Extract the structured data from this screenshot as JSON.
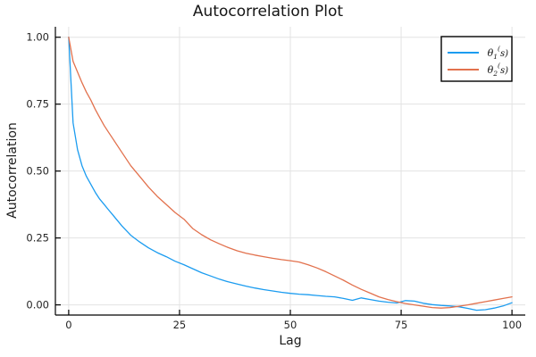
{
  "chart_data": {
    "type": "line",
    "title": "Autocorrelation Plot",
    "xlabel": "Lag",
    "ylabel": "Autocorrelation",
    "xlim": [
      -3.0,
      103.0
    ],
    "ylim": [
      -0.038,
      1.039
    ],
    "grid": true,
    "xticks": {
      "values": [
        0,
        25,
        50,
        75,
        100
      ],
      "labels": [
        "0",
        "25",
        "50",
        "75",
        "100"
      ]
    },
    "yticks": {
      "values": [
        0.0,
        0.25,
        0.5,
        0.75,
        1.0
      ],
      "labels": [
        "0.00",
        "0.25",
        "0.50",
        "0.75",
        "1.00"
      ]
    },
    "legend": {
      "position": "top-right",
      "background": "#ffffff",
      "border_color": "#000000"
    },
    "colors": {
      "grid": "#e3e3e3",
      "axis": "#000000",
      "tick_label": "#242424",
      "legend_text": "#111111"
    },
    "x": [
      0,
      1,
      2,
      3,
      4,
      5,
      6,
      7,
      8,
      9,
      10,
      12,
      14,
      16,
      18,
      20,
      22,
      24,
      26,
      28,
      30,
      32,
      34,
      36,
      38,
      40,
      42,
      44,
      46,
      48,
      50,
      52,
      54,
      56,
      58,
      60,
      62,
      64,
      66,
      68,
      70,
      72,
      74,
      76,
      78,
      80,
      82,
      84,
      86,
      88,
      90,
      92,
      94,
      96,
      98,
      100
    ],
    "series": [
      {
        "name": "theta_1^(s)",
        "label_parts": {
          "base": "θ",
          "sub": "1",
          "sup": "(",
          "tail": "s)"
        },
        "color": "#1b9cf0",
        "values": [
          1.0,
          0.68,
          0.58,
          0.52,
          0.48,
          0.45,
          0.42,
          0.395,
          0.375,
          0.355,
          0.335,
          0.295,
          0.26,
          0.235,
          0.213,
          0.195,
          0.18,
          0.163,
          0.15,
          0.135,
          0.12,
          0.108,
          0.096,
          0.086,
          0.078,
          0.07,
          0.063,
          0.057,
          0.052,
          0.047,
          0.043,
          0.04,
          0.038,
          0.035,
          0.032,
          0.03,
          0.024,
          0.017,
          0.026,
          0.02,
          0.014,
          0.01,
          0.007,
          0.016,
          0.014,
          0.006,
          0.001,
          -0.002,
          -0.004,
          -0.007,
          -0.013,
          -0.02,
          -0.018,
          -0.012,
          -0.004,
          0.008
        ]
      },
      {
        "name": "theta_2^(s)",
        "label_parts": {
          "base": "θ",
          "sub": "2",
          "sup": "(",
          "tail": "s)"
        },
        "color": "#e2714d",
        "values": [
          1.0,
          0.91,
          0.87,
          0.83,
          0.795,
          0.765,
          0.73,
          0.7,
          0.67,
          0.645,
          0.62,
          0.57,
          0.52,
          0.48,
          0.44,
          0.405,
          0.375,
          0.345,
          0.32,
          0.285,
          0.262,
          0.243,
          0.228,
          0.214,
          0.202,
          0.193,
          0.186,
          0.18,
          0.174,
          0.169,
          0.165,
          0.16,
          0.15,
          0.138,
          0.124,
          0.108,
          0.092,
          0.074,
          0.058,
          0.044,
          0.03,
          0.02,
          0.012,
          0.005,
          0.0,
          -0.005,
          -0.01,
          -0.012,
          -0.01,
          -0.005,
          0.0,
          0.006,
          0.012,
          0.018,
          0.024,
          0.03
        ]
      }
    ]
  }
}
